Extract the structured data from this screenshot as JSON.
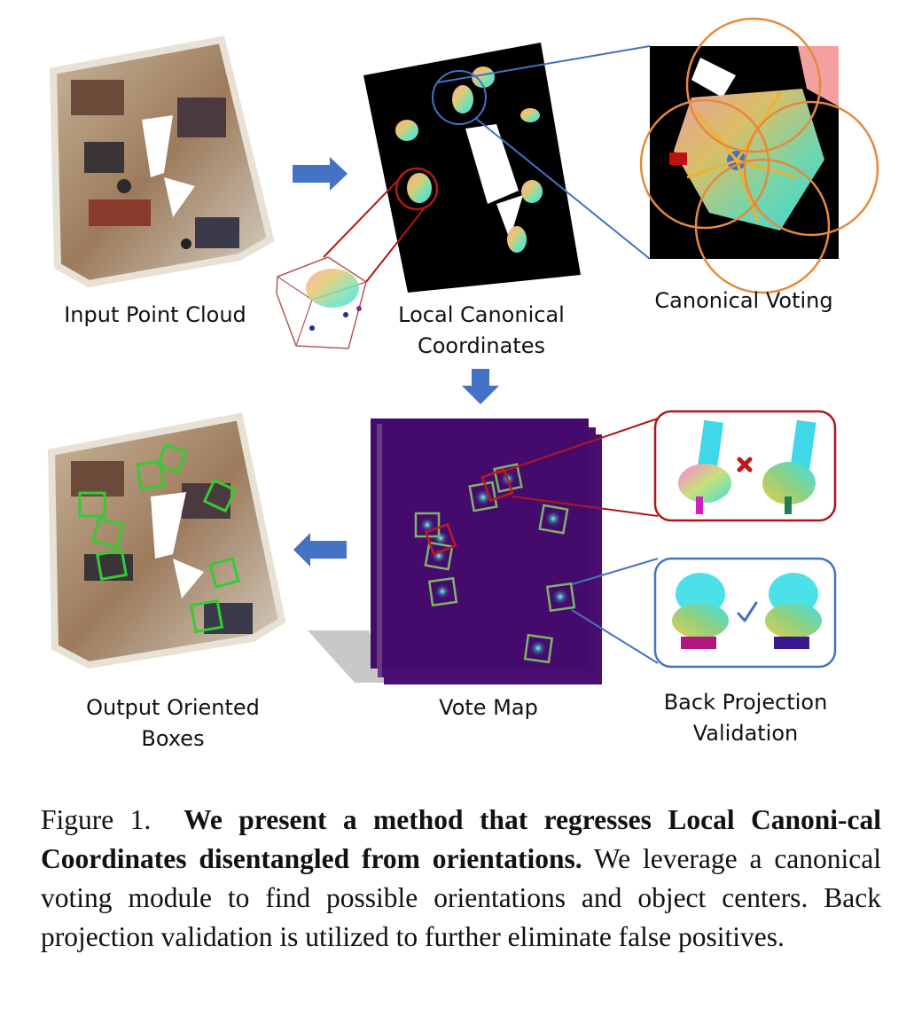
{
  "panels": {
    "input_point_cloud": "Input Point Cloud",
    "local_canonical_line1": "Local Canonical",
    "local_canonical_line2": "Coordinates",
    "canonical_voting": "Canonical Voting",
    "output_line1": "Output Oriented",
    "output_line2": "Boxes",
    "vote_map": "Vote Map",
    "back_projection_line1": "Back Projection",
    "back_projection_line2": "Validation"
  },
  "caption": {
    "prefix": "Figure 1.",
    "bold": "We present a method that regresses Local Canoni-cal Coordinates disentangled from orientations.",
    "rest": "We leverage a canonical voting module to find possible orientations and object centers. Back projection validation is utilized to further eliminate false positives."
  },
  "colors": {
    "arrow": "#4472c4",
    "vote_map": "#440a6b",
    "box_green": "#7fb368",
    "box_red": "#c0181c",
    "orange_circle": "#e8893a"
  }
}
